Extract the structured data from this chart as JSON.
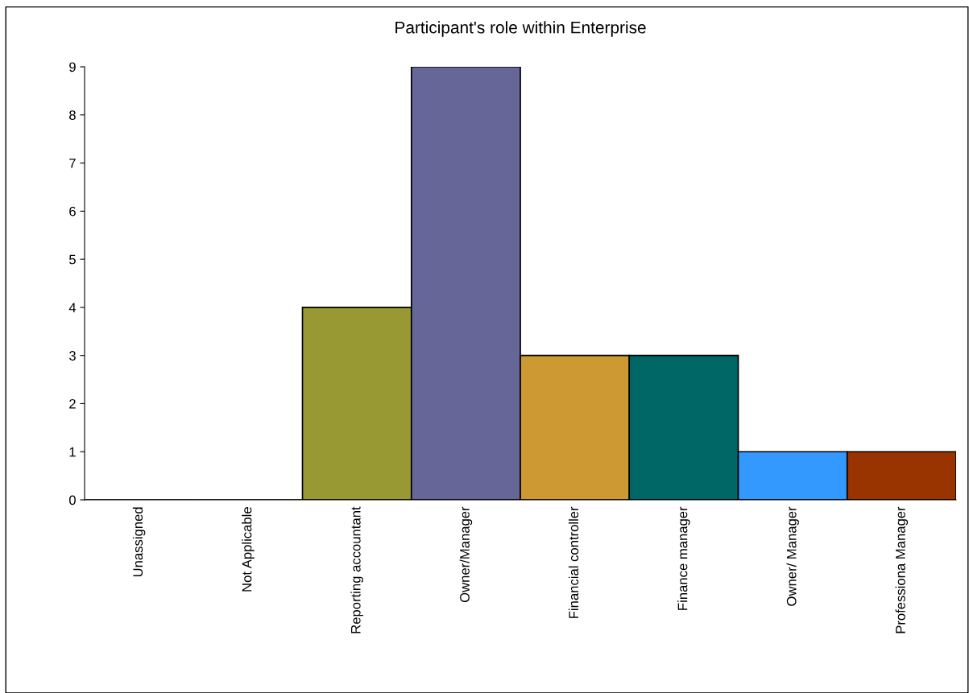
{
  "chart_data": {
    "type": "bar",
    "title": "Participant's role within Enterprise",
    "categories": [
      "Unassigned",
      "Not Applicable",
      "Reporting accountant",
      "Owner/Manager",
      "Financial controller",
      "Finance manager",
      "Owner/ Manager",
      "Professiona Manager"
    ],
    "values": [
      0,
      0,
      4,
      9,
      3,
      3,
      1,
      1
    ],
    "colors": [
      "#9999ff",
      "#993366",
      "#999933",
      "#666699",
      "#cc9933",
      "#006666",
      "#3399ff",
      "#993300"
    ],
    "ylim": [
      0,
      9
    ],
    "yticks": [
      0,
      1,
      2,
      3,
      4,
      5,
      6,
      7,
      8,
      9
    ],
    "grid": false,
    "legend": false
  }
}
